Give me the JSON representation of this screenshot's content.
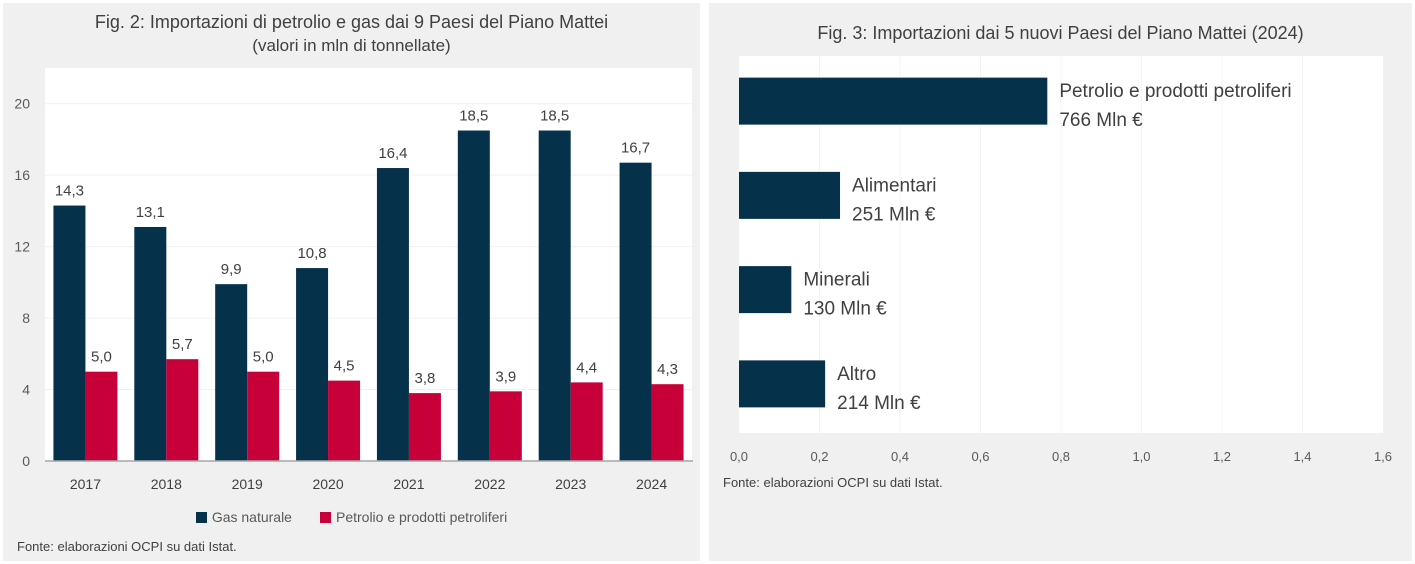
{
  "colors": {
    "gas": "#06314a",
    "oil": "#c8003a",
    "bar": "#06314a",
    "background": "#f0f0f0",
    "axis_text": "#404040"
  },
  "chart_data": [
    {
      "type": "bar",
      "title": "Fig. 2: Importazioni di petrolio e gas dai 9 Paesi del Piano Mattei",
      "subtitle": "(valori in mln di tonnellate)",
      "xlabel": "",
      "ylabel": "",
      "categories": [
        "2017",
        "2018",
        "2019",
        "2020",
        "2021",
        "2022",
        "2023",
        "2024"
      ],
      "series": [
        {
          "name": "Gas naturale",
          "values": [
            14.3,
            13.1,
            9.9,
            10.8,
            16.4,
            18.5,
            18.5,
            16.7
          ],
          "labels": [
            "14,3",
            "13,1",
            "9,9",
            "10,8",
            "16,4",
            "18,5",
            "18,5",
            "16,7"
          ]
        },
        {
          "name": "Petrolio e prodotti petroliferi",
          "values": [
            5.0,
            5.7,
            5.0,
            4.5,
            3.8,
            3.9,
            4.4,
            4.3
          ],
          "labels": [
            "5,0",
            "5,7",
            "5,0",
            "4,5",
            "3,8",
            "3,9",
            "4,4",
            "4,3"
          ]
        }
      ],
      "ylim": [
        0,
        22
      ],
      "yticks": [
        0,
        4,
        8,
        12,
        16,
        20
      ],
      "ytick_labels": [
        "0",
        "4",
        "8",
        "12",
        "16",
        "20"
      ],
      "grid": true,
      "legend_position": "bottom",
      "source": "Fonte: elaborazioni OCPI su dati Istat."
    },
    {
      "type": "bar",
      "orientation": "horizontal",
      "title": "Fig. 3: Importazioni dai 5 nuovi Paesi del Piano Mattei (2024)",
      "xlabel": "",
      "ylabel": "",
      "categories": [
        "Petrolio e prodotti petroliferi",
        "Alimentari",
        "Minerali",
        "Altro"
      ],
      "values": [
        0.766,
        0.251,
        0.13,
        0.214
      ],
      "value_labels": [
        "766 Mln €",
        "251 Mln €",
        "130 Mln €",
        "214 Mln €"
      ],
      "xlim": [
        0,
        1.6
      ],
      "xticks": [
        0,
        0.2,
        0.4,
        0.6,
        0.8,
        1.0,
        1.2,
        1.4,
        1.6
      ],
      "xtick_labels": [
        "0,0",
        "0,2",
        "0,4",
        "0,6",
        "0,8",
        "1,0",
        "1,2",
        "1,4",
        "1,6"
      ],
      "grid": true,
      "legend_position": "none",
      "source": "Fonte: elaborazioni OCPI su dati Istat."
    }
  ]
}
